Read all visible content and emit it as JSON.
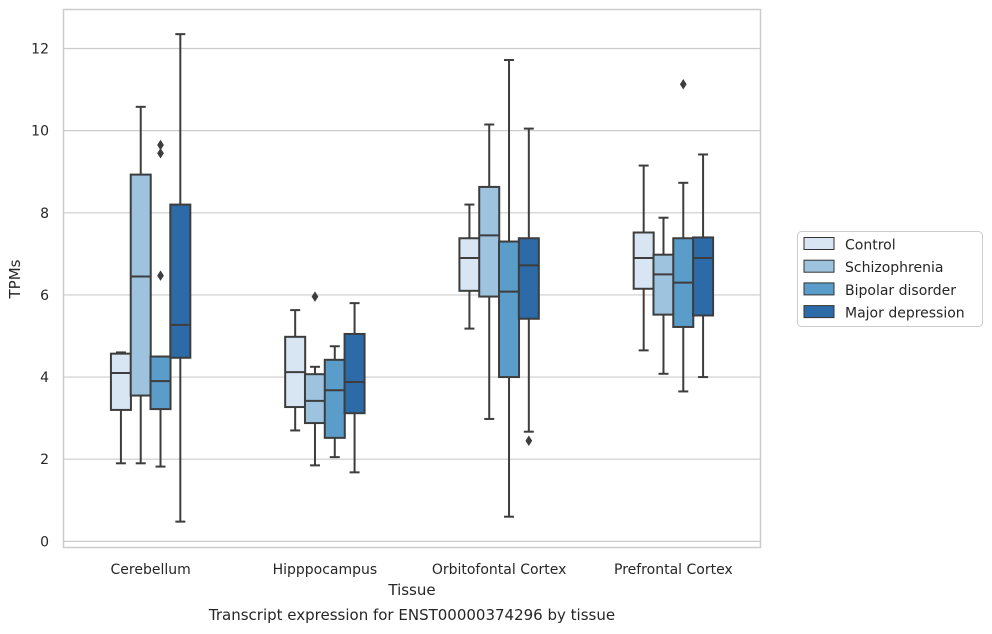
{
  "caption": "Transcript expression for ENST00000374296 by tissue",
  "chart_data": {
    "type": "box",
    "title": "",
    "xlabel": "Tissue",
    "ylabel": "TPMs",
    "ylim": [
      -0.15,
      12.95
    ],
    "yticks": [
      0,
      2,
      4,
      6,
      8,
      10,
      12
    ],
    "grid": "horizontal",
    "legend_position": "right",
    "categories": [
      "Cerebellum",
      "Hipppocampus",
      "Orbitofontal Cortex",
      "Prefrontal Cortex"
    ],
    "series": [
      {
        "name": "Control",
        "color": "#d8e6f4",
        "boxes": [
          {
            "whislo": 1.9,
            "q1": 3.2,
            "med": 4.1,
            "q3": 4.57,
            "whishi": 4.6,
            "fliers": []
          },
          {
            "whislo": 2.7,
            "q1": 3.27,
            "med": 4.12,
            "q3": 4.98,
            "whishi": 5.63,
            "fliers": []
          },
          {
            "whislo": 5.18,
            "q1": 6.1,
            "med": 6.9,
            "q3": 7.38,
            "whishi": 8.2,
            "fliers": []
          },
          {
            "whislo": 4.65,
            "q1": 6.15,
            "med": 6.9,
            "q3": 7.52,
            "whishi": 9.15,
            "fliers": []
          }
        ]
      },
      {
        "name": "Schizophrenia",
        "color": "#9dc3de",
        "boxes": [
          {
            "whislo": 1.9,
            "q1": 3.55,
            "med": 6.45,
            "q3": 8.93,
            "whishi": 10.58,
            "fliers": []
          },
          {
            "whislo": 1.85,
            "q1": 2.88,
            "med": 3.42,
            "q3": 4.07,
            "whishi": 4.25,
            "fliers": [
              5.96
            ]
          },
          {
            "whislo": 2.98,
            "q1": 5.96,
            "med": 7.45,
            "q3": 8.63,
            "whishi": 10.15,
            "fliers": []
          },
          {
            "whislo": 4.08,
            "q1": 5.52,
            "med": 6.5,
            "q3": 6.98,
            "whishi": 7.88,
            "fliers": []
          }
        ]
      },
      {
        "name": "Bipolar disorder",
        "color": "#5a9cca",
        "boxes": [
          {
            "whislo": 1.82,
            "q1": 3.22,
            "med": 3.9,
            "q3": 4.5,
            "whishi": 4.5,
            "fliers": [
              6.47,
              9.45,
              9.65
            ]
          },
          {
            "whislo": 2.05,
            "q1": 2.52,
            "med": 3.68,
            "q3": 4.42,
            "whishi": 4.75,
            "fliers": []
          },
          {
            "whislo": 0.6,
            "q1": 4.0,
            "med": 6.08,
            "q3": 7.3,
            "whishi": 11.72,
            "fliers": []
          },
          {
            "whislo": 3.65,
            "q1": 5.22,
            "med": 6.3,
            "q3": 7.38,
            "whishi": 8.73,
            "fliers": [
              11.13
            ]
          }
        ]
      },
      {
        "name": "Major depression",
        "color": "#2c6ba8",
        "boxes": [
          {
            "whislo": 0.48,
            "q1": 4.47,
            "med": 5.27,
            "q3": 8.2,
            "whishi": 12.35,
            "fliers": []
          },
          {
            "whislo": 1.68,
            "q1": 3.12,
            "med": 3.88,
            "q3": 5.05,
            "whishi": 5.8,
            "fliers": []
          },
          {
            "whislo": 2.67,
            "q1": 5.42,
            "med": 6.72,
            "q3": 7.38,
            "whishi": 10.05,
            "fliers": [
              2.45
            ]
          },
          {
            "whislo": 4.0,
            "q1": 5.5,
            "med": 6.9,
            "q3": 7.4,
            "whishi": 9.42,
            "fliers": []
          }
        ]
      }
    ]
  }
}
